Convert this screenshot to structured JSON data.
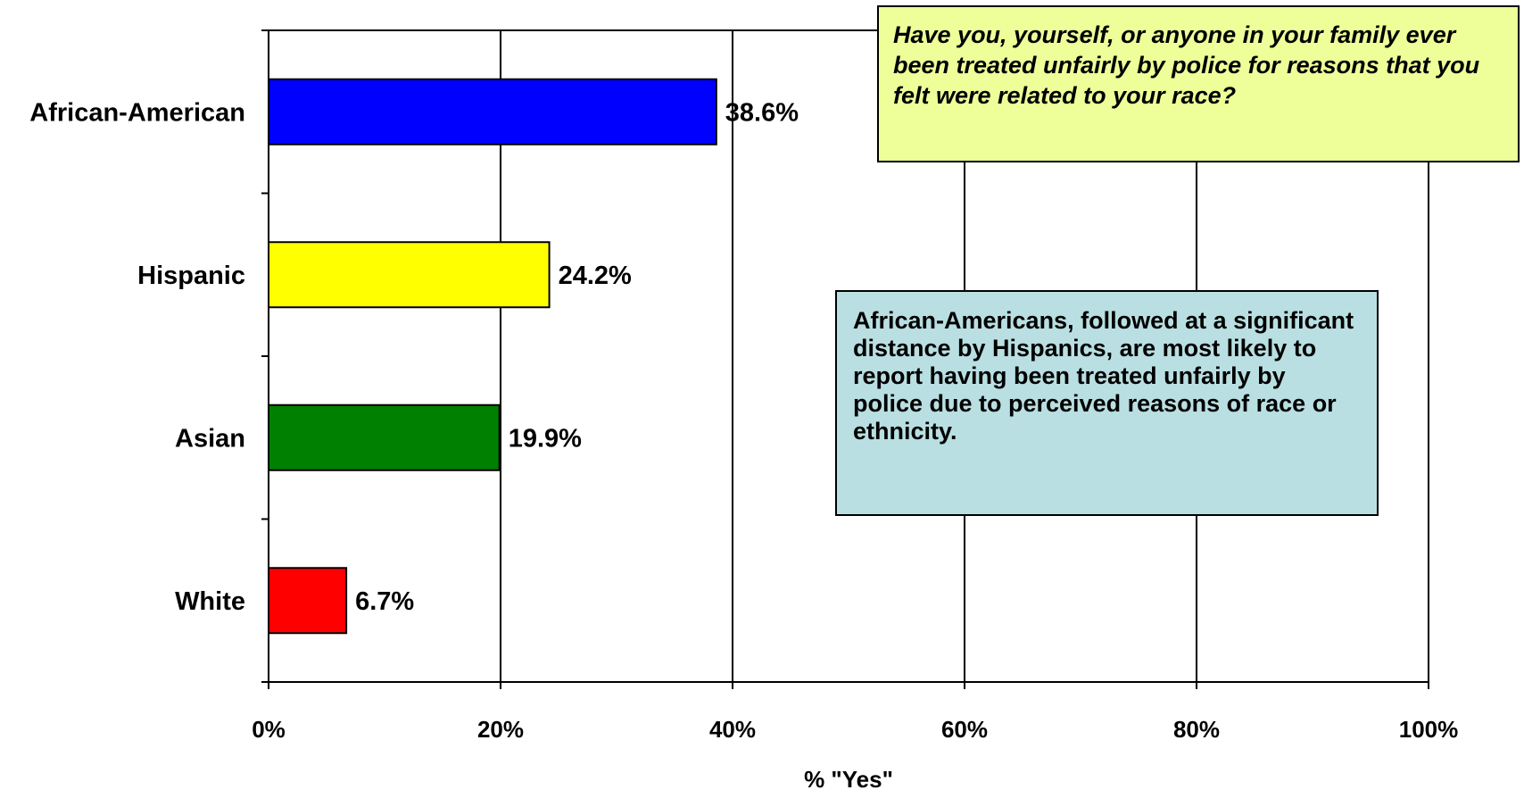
{
  "chart_data": {
    "type": "bar",
    "orientation": "horizontal",
    "categories": [
      "African-American",
      "Hispanic",
      "Asian",
      "White"
    ],
    "values": [
      38.6,
      24.2,
      19.9,
      6.7
    ],
    "data_labels": [
      "38.6%",
      "24.2%",
      "19.9%",
      "6.7%"
    ],
    "colors": [
      "#0000ff",
      "#ffff00",
      "#008000",
      "#ff0000"
    ],
    "xlabel": "% \"Yes\"",
    "ylabel": "",
    "xlim": [
      0,
      100
    ],
    "xticks": [
      0,
      20,
      40,
      60,
      80,
      100
    ],
    "xtick_labels": [
      "0%",
      "20%",
      "40%",
      "60%",
      "80%",
      "100%"
    ],
    "grid": "vertical",
    "legend": "none"
  },
  "question_text": "Have you, yourself, or anyone in your family ever been treated unfairly by police for reasons that you felt were related to your race?",
  "callout_text": "African-Americans, followed at a significant distance by Hispanics, are most likely to report having been treated unfairly by police due to perceived reasons of race or ethnicity.",
  "colors": {
    "question_box": "#eeff99",
    "callout_box": "#b9dfe2"
  }
}
